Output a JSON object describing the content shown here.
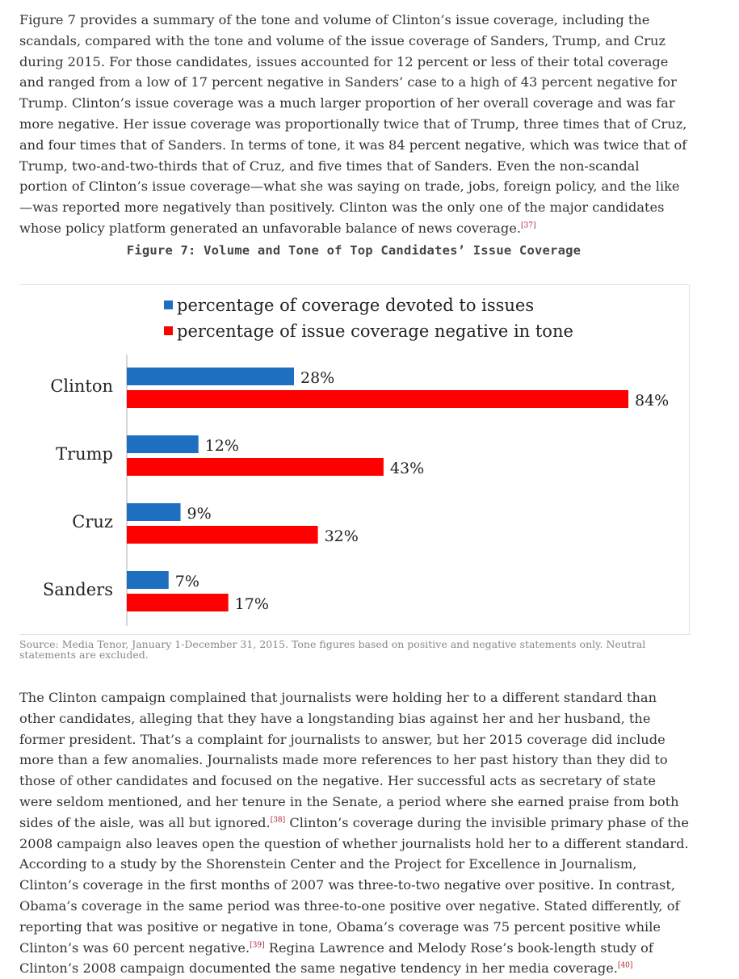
{
  "paragraph1": {
    "text": "Figure 7 provides a summary of the tone and volume of Clinton’s issue coverage, including the scandals, compared with the tone and volume of the issue coverage of Sanders, Trump, and Cruz during 2015. For those candidates, issues accounted for 12 percent or less of their total coverage and ranged from a low of 17 percent negative in Sanders’ case to a high of 43 percent negative for Trump. Clinton’s issue coverage was a much larger proportion of her overall coverage and was far more negative. Her issue coverage was proportionally twice that of Trump, three times that of Cruz, and four times that of Sanders. In terms of tone, it was 84 percent negative, which was twice that of Trump, two-and-two-thirds that of Cruz, and five times that of Sanders.  Even the non-scandal portion of Clinton’s issue coverage—what she was saying on trade, jobs, foreign policy, and the like—was reported more negatively than positively. Clinton was the only one of the major candidates whose policy platform generated an unfavorable balance of news coverage.",
    "footnote": "[37]"
  },
  "figure_title": "Figure 7: Volume and Tone of Top Candidates’ Issue Coverage",
  "chart_data": {
    "type": "bar",
    "orientation": "horizontal",
    "title": "Figure 7: Volume and Tone of Top Candidates’ Issue Coverage",
    "categories": [
      "Clinton",
      "Trump",
      "Cruz",
      "Sanders"
    ],
    "series": [
      {
        "name": "percentage of coverage devoted to issues",
        "color": "#1f6fc0",
        "values": [
          28,
          12,
          9,
          7
        ],
        "labels": [
          "28%",
          "12%",
          "9%",
          "7%"
        ]
      },
      {
        "name": "percentage of issue coverage negative in tone",
        "color": "#ff0000",
        "values": [
          84,
          43,
          32,
          17
        ],
        "labels": [
          "84%",
          "43%",
          "32%",
          "17%"
        ]
      }
    ],
    "xlim": [
      0,
      84
    ],
    "legend_position": "top",
    "grid": false
  },
  "source_note": "Source: Media Tenor, January 1-December 31, 2015. Tone figures based on positive and negative statements only. Neutral statements are excluded.",
  "paragraph2": {
    "part1": "The Clinton campaign complained that journalists were holding her to a different standard than other candidates, alleging that they have a longstanding bias against her and her husband, the former president. That’s a complaint for journalists to answer, but her 2015 coverage did include more than a few anomalies. Journalists made more references to her past history than they did to those of other candidates and focused on the negative. Her successful acts as secretary of state were seldom mentioned, and her tenure in the Senate, a period where she earned praise from both sides of the aisle, was all but ignored.",
    "fn1": "[38]",
    "part2": " Clinton’s coverage during the invisible primary phase of the 2008 campaign also leaves open the question of whether journalists hold her to a different standard. According to a study by the Shorenstein Center and the Project for Excellence in Journalism, Clinton’s coverage in the first months of 2007 was three-to-two negative over positive. In contrast, Obama’s coverage in the same period was three-to-one positive over negative. Stated differently, of reporting that was positive or negative in tone, Obama’s coverage was 75 percent positive while Clinton’s was 60 percent negative.",
    "fn2": "[39]",
    "part3": " Regina Lawrence and Melody Rose’s book-length study of Clinton’s 2008 campaign documented the same negative tendency in her media coverage.",
    "fn3": "[40]"
  }
}
